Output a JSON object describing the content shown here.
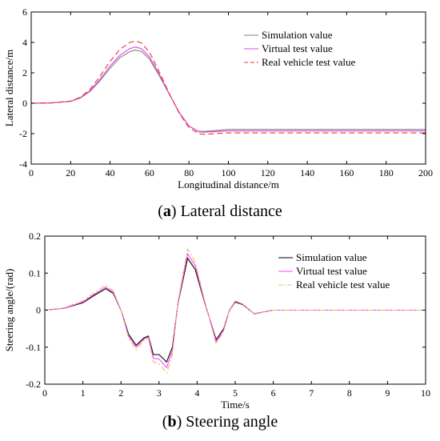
{
  "captions": [
    {
      "tag": "a",
      "text": "Lateral distance"
    },
    {
      "tag": "b",
      "text": "Steering angle"
    }
  ],
  "chart_data": [
    {
      "type": "line",
      "title": "",
      "xlabel": "Longitudinal distance/m",
      "ylabel": "Lateral distance/m",
      "xlim": [
        0,
        200
      ],
      "ylim": [
        -4,
        6
      ],
      "xticks": [
        0,
        20,
        40,
        60,
        80,
        100,
        120,
        140,
        160,
        180,
        200
      ],
      "yticks": [
        -4,
        -2,
        0,
        2,
        4,
        6
      ],
      "grid": false,
      "legend_position": "top-right",
      "series": [
        {
          "name": "Simulation value",
          "color": "#808080",
          "dash": "solid",
          "x": [
            0,
            10,
            20,
            25,
            30,
            35,
            40,
            45,
            50,
            53,
            56,
            60,
            65,
            70,
            75,
            80,
            85,
            88,
            95,
            100,
            120,
            140,
            160,
            180,
            200
          ],
          "y": [
            0,
            0.02,
            0.12,
            0.35,
            0.8,
            1.5,
            2.3,
            3.0,
            3.4,
            3.5,
            3.4,
            2.9,
            1.8,
            0.6,
            -0.6,
            -1.5,
            -1.85,
            -1.85,
            -1.78,
            -1.72,
            -1.72,
            -1.72,
            -1.72,
            -1.72,
            -1.72
          ]
        },
        {
          "name": "Virtual test value",
          "color": "#dd44dd",
          "dash": "solid",
          "x": [
            0,
            10,
            20,
            25,
            30,
            35,
            40,
            45,
            50,
            53,
            56,
            60,
            65,
            70,
            75,
            80,
            85,
            88,
            95,
            100,
            120,
            140,
            160,
            180,
            200
          ],
          "y": [
            0,
            0.02,
            0.13,
            0.38,
            0.85,
            1.6,
            2.45,
            3.15,
            3.6,
            3.7,
            3.58,
            3.05,
            1.9,
            0.62,
            -0.6,
            -1.5,
            -1.88,
            -1.9,
            -1.85,
            -1.82,
            -1.82,
            -1.82,
            -1.82,
            -1.82,
            -1.82
          ]
        },
        {
          "name": "Real vehicle test value",
          "color": "#ee3333",
          "dash": "dashed",
          "x": [
            0,
            10,
            20,
            25,
            30,
            35,
            40,
            45,
            50,
            53,
            56,
            60,
            65,
            70,
            75,
            80,
            85,
            88,
            95,
            100,
            120,
            140,
            160,
            180,
            200
          ],
          "y": [
            0,
            0.02,
            0.14,
            0.4,
            0.95,
            1.8,
            2.75,
            3.55,
            4.0,
            4.1,
            3.95,
            3.35,
            2.05,
            0.65,
            -0.65,
            -1.6,
            -2.0,
            -2.05,
            -1.98,
            -1.95,
            -1.95,
            -1.95,
            -1.95,
            -1.95,
            -1.95
          ]
        }
      ]
    },
    {
      "type": "line",
      "title": "",
      "xlabel": "Time/s",
      "ylabel": "Steering angle/(rad)",
      "xlim": [
        0,
        10
      ],
      "ylim": [
        -0.2,
        0.2
      ],
      "xticks": [
        0,
        1,
        2,
        3,
        4,
        5,
        6,
        7,
        8,
        9,
        10
      ],
      "yticks": [
        -0.2,
        -0.1,
        0,
        0.1,
        0.2
      ],
      "grid": false,
      "legend_position": "top-right",
      "series": [
        {
          "name": "Simulation value",
          "color": "#000000",
          "dash": "solid",
          "x": [
            0,
            0.5,
            1.0,
            1.3,
            1.6,
            1.8,
            2.0,
            2.2,
            2.4,
            2.6,
            2.72,
            2.85,
            3.0,
            3.2,
            3.35,
            3.5,
            3.75,
            3.95,
            4.2,
            4.5,
            4.7,
            4.85,
            5.0,
            5.2,
            5.5,
            6.0,
            6.5,
            7,
            8,
            9,
            10
          ],
          "y": [
            0,
            0.005,
            0.02,
            0.04,
            0.058,
            0.045,
            0.0,
            -0.065,
            -0.095,
            -0.075,
            -0.07,
            -0.12,
            -0.12,
            -0.14,
            -0.1,
            0.02,
            0.14,
            0.11,
            0.02,
            -0.08,
            -0.05,
            0.0,
            0.022,
            0.015,
            -0.01,
            0.0,
            0.0,
            0.0,
            0.0,
            0.0,
            0.0
          ]
        },
        {
          "name": "Virtual test value",
          "color": "#ff44ff",
          "dash": "solid",
          "x": [
            0,
            0.5,
            1.0,
            1.3,
            1.6,
            1.8,
            2.0,
            2.2,
            2.4,
            2.6,
            2.72,
            2.85,
            3.0,
            3.2,
            3.35,
            3.5,
            3.75,
            3.95,
            4.2,
            4.5,
            4.7,
            4.85,
            5.0,
            5.2,
            5.5,
            6.0,
            6.5,
            7,
            8,
            9,
            10
          ],
          "y": [
            0,
            0.005,
            0.022,
            0.043,
            0.062,
            0.048,
            0.0,
            -0.07,
            -0.1,
            -0.078,
            -0.073,
            -0.13,
            -0.132,
            -0.155,
            -0.11,
            0.022,
            0.152,
            0.12,
            0.022,
            -0.085,
            -0.053,
            0.0,
            0.024,
            0.016,
            -0.01,
            0.0,
            0.0,
            0.0,
            0.0,
            0.0,
            0.0
          ]
        },
        {
          "name": "Real vehicle test value",
          "color": "#e8c060",
          "dash": "dashdot",
          "x": [
            0,
            0.5,
            1.0,
            1.3,
            1.6,
            1.8,
            2.0,
            2.2,
            2.4,
            2.6,
            2.72,
            2.85,
            3.0,
            3.2,
            3.35,
            3.5,
            3.75,
            3.95,
            4.2,
            4.5,
            4.7,
            4.85,
            5.0,
            5.2,
            5.5,
            6.0,
            6.5,
            7,
            8,
            9,
            10
          ],
          "y": [
            0,
            0.006,
            0.025,
            0.047,
            0.068,
            0.052,
            0.0,
            -0.075,
            -0.108,
            -0.082,
            -0.076,
            -0.14,
            -0.145,
            -0.17,
            -0.12,
            0.025,
            0.165,
            0.13,
            0.025,
            -0.092,
            -0.056,
            0.0,
            0.026,
            0.017,
            -0.011,
            0.0,
            0.0,
            0.0,
            0.0,
            0.0,
            0.0
          ]
        }
      ]
    }
  ]
}
